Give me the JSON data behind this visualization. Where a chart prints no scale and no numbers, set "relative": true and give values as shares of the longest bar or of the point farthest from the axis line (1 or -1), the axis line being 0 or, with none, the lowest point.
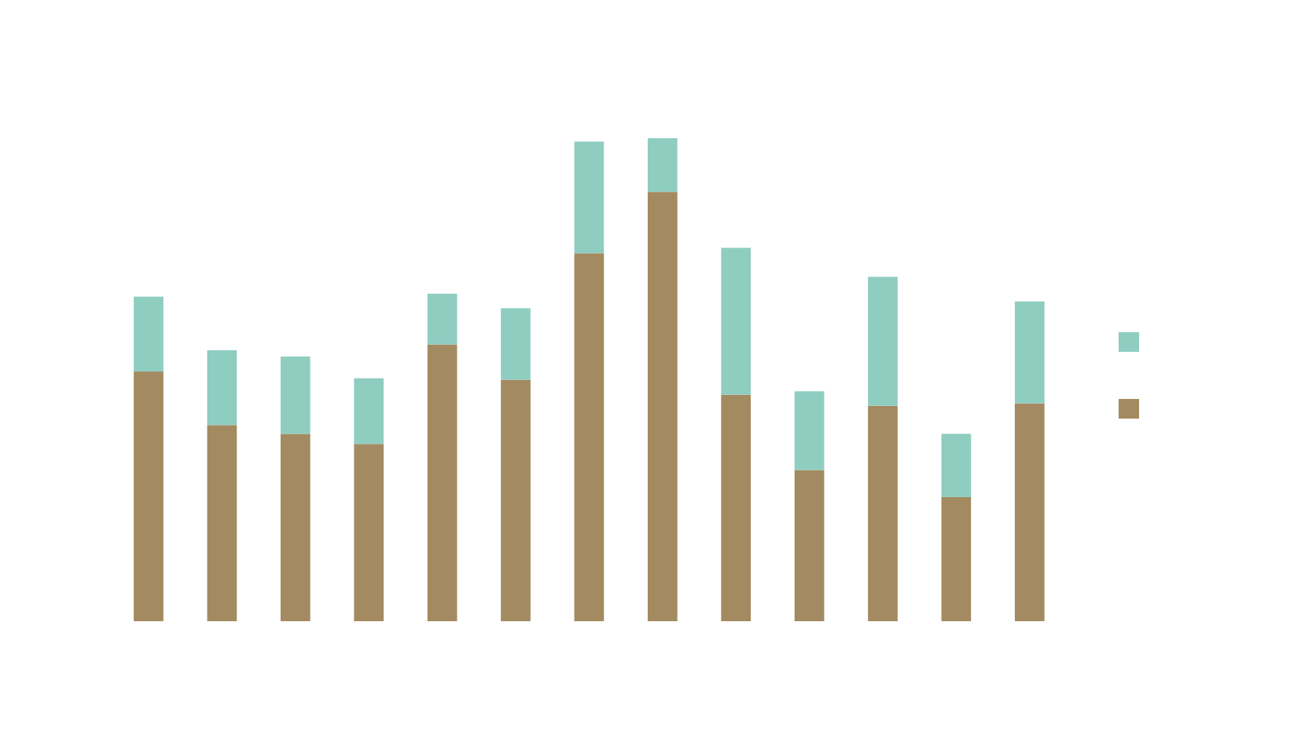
{
  "chart_data": {
    "type": "bar",
    "stacked": true,
    "relative": true,
    "categories": [
      null,
      null,
      null,
      null,
      null,
      null,
      null,
      null,
      null,
      null,
      null,
      null,
      null
    ],
    "series": [
      {
        "color": "#a38a60",
        "values": [
          0.517,
          0.406,
          0.388,
          0.367,
          0.573,
          0.5,
          0.762,
          0.889,
          0.469,
          0.313,
          0.446,
          0.257,
          0.451
        ]
      },
      {
        "color": "#8fcdc1",
        "values": [
          0.155,
          0.155,
          0.16,
          0.136,
          0.105,
          0.148,
          0.231,
          0.111,
          0.304,
          0.163,
          0.267,
          0.131,
          0.211
        ]
      }
    ]
  }
}
